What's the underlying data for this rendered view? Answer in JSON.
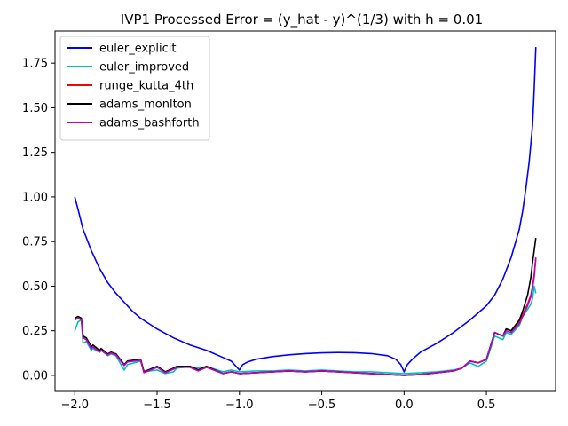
{
  "chart_data": {
    "type": "line",
    "title": "IVP1 Processed Error = (y_hat - y)^(1/3) with h = 0.01",
    "xlabel": "",
    "ylabel": "",
    "xlim": [
      -2.12,
      0.92
    ],
    "ylim": [
      -0.09,
      1.93
    ],
    "x_ticks": [
      -2.0,
      -1.5,
      -1.0,
      -0.5,
      0.0,
      0.5
    ],
    "x_tick_labels": [
      "−2.0",
      "−1.5",
      "−1.0",
      "−0.5",
      "0.0",
      "0.5"
    ],
    "y_ticks": [
      0.0,
      0.25,
      0.5,
      0.75,
      1.0,
      1.25,
      1.5,
      1.75
    ],
    "y_tick_labels": [
      "0.00",
      "0.25",
      "0.50",
      "0.75",
      "1.00",
      "1.25",
      "1.50",
      "1.75"
    ],
    "grid": false,
    "legend_position": "top-left",
    "series": [
      {
        "name": "euler_explicit",
        "color": "#0000ff",
        "x": [
          -2.0,
          -1.98,
          -1.95,
          -1.9,
          -1.85,
          -1.8,
          -1.75,
          -1.7,
          -1.65,
          -1.6,
          -1.55,
          -1.5,
          -1.4,
          -1.3,
          -1.2,
          -1.1,
          -1.05,
          -1.0,
          -0.98,
          -0.95,
          -0.9,
          -0.8,
          -0.7,
          -0.6,
          -0.5,
          -0.4,
          -0.3,
          -0.2,
          -0.1,
          -0.05,
          -0.02,
          0.0,
          0.02,
          0.05,
          0.1,
          0.2,
          0.3,
          0.4,
          0.5,
          0.55,
          0.6,
          0.65,
          0.7,
          0.72,
          0.74,
          0.76,
          0.78,
          0.79,
          0.8
        ],
        "y": [
          1.0,
          0.93,
          0.82,
          0.7,
          0.6,
          0.52,
          0.46,
          0.41,
          0.36,
          0.32,
          0.29,
          0.26,
          0.21,
          0.17,
          0.14,
          0.1,
          0.08,
          0.03,
          0.06,
          0.075,
          0.09,
          0.105,
          0.115,
          0.122,
          0.126,
          0.128,
          0.127,
          0.122,
          0.11,
          0.09,
          0.06,
          0.02,
          0.06,
          0.09,
          0.13,
          0.18,
          0.24,
          0.31,
          0.39,
          0.45,
          0.54,
          0.66,
          0.82,
          0.92,
          1.05,
          1.2,
          1.4,
          1.6,
          1.84
        ]
      },
      {
        "name": "euler_improved",
        "color": "#00bfbf",
        "x": [
          -2.0,
          -1.98,
          -1.96,
          -1.95,
          -1.93,
          -1.9,
          -1.89,
          -1.85,
          -1.84,
          -1.8,
          -1.78,
          -1.75,
          -1.7,
          -1.68,
          -1.6,
          -1.58,
          -1.5,
          -1.45,
          -1.4,
          -1.38,
          -1.3,
          -1.25,
          -1.2,
          -1.1,
          -1.05,
          -1.0,
          -0.9,
          -0.8,
          -0.7,
          -0.6,
          -0.5,
          -0.4,
          -0.3,
          -0.2,
          -0.1,
          0.0,
          0.1,
          0.2,
          0.3,
          0.35,
          0.4,
          0.45,
          0.5,
          0.55,
          0.6,
          0.62,
          0.65,
          0.7,
          0.72,
          0.75,
          0.77,
          0.78,
          0.79,
          0.8
        ],
        "y": [
          0.25,
          0.3,
          0.31,
          0.18,
          0.19,
          0.14,
          0.15,
          0.13,
          0.14,
          0.11,
          0.12,
          0.11,
          0.03,
          0.06,
          0.08,
          0.02,
          0.03,
          0.01,
          0.02,
          0.04,
          0.05,
          0.04,
          0.05,
          0.02,
          0.03,
          0.02,
          0.025,
          0.025,
          0.03,
          0.025,
          0.03,
          0.025,
          0.02,
          0.02,
          0.015,
          0.01,
          0.015,
          0.02,
          0.03,
          0.04,
          0.07,
          0.05,
          0.08,
          0.22,
          0.2,
          0.24,
          0.23,
          0.28,
          0.33,
          0.37,
          0.4,
          0.43,
          0.5,
          0.46
        ]
      },
      {
        "name": "runge_kutta_4th",
        "color": "#ff0000",
        "x": [
          -2.0,
          -1.98,
          -1.96,
          -1.95,
          -1.93,
          -1.9,
          -1.89,
          -1.85,
          -1.84,
          -1.8,
          -1.78,
          -1.75,
          -1.7,
          -1.68,
          -1.6,
          -1.58,
          -1.5,
          -1.45,
          -1.4,
          -1.38,
          -1.3,
          -1.25,
          -1.2,
          -1.1,
          -1.05,
          -1.0,
          -0.9,
          -0.8,
          -0.7,
          -0.6,
          -0.5,
          -0.4,
          -0.3,
          -0.2,
          -0.1,
          0.0,
          0.1,
          0.2,
          0.3,
          0.35,
          0.4,
          0.45,
          0.5,
          0.55,
          0.6,
          0.62,
          0.65,
          0.7,
          0.72,
          0.75,
          0.77,
          0.78,
          0.79,
          0.8
        ],
        "y": [
          0.32,
          0.33,
          0.32,
          0.22,
          0.21,
          0.16,
          0.17,
          0.14,
          0.15,
          0.12,
          0.13,
          0.12,
          0.06,
          0.08,
          0.09,
          0.02,
          0.05,
          0.02,
          0.04,
          0.05,
          0.05,
          0.03,
          0.05,
          0.01,
          0.02,
          0.01,
          0.015,
          0.02,
          0.025,
          0.02,
          0.025,
          0.02,
          0.015,
          0.01,
          0.005,
          0.0,
          0.005,
          0.015,
          0.025,
          0.04,
          0.08,
          0.07,
          0.09,
          0.24,
          0.22,
          0.26,
          0.25,
          0.3,
          0.34,
          0.4,
          0.45,
          0.5,
          0.56,
          0.66
        ]
      },
      {
        "name": "adams_monlton",
        "color": "#000000",
        "x": [
          -2.0,
          -1.98,
          -1.96,
          -1.95,
          -1.93,
          -1.9,
          -1.89,
          -1.85,
          -1.84,
          -1.8,
          -1.78,
          -1.75,
          -1.7,
          -1.68,
          -1.6,
          -1.58,
          -1.5,
          -1.45,
          -1.4,
          -1.38,
          -1.3,
          -1.25,
          -1.2,
          -1.1,
          -1.05,
          -1.0,
          -0.9,
          -0.8,
          -0.7,
          -0.6,
          -0.5,
          -0.4,
          -0.3,
          -0.2,
          -0.1,
          0.0,
          0.1,
          0.2,
          0.3,
          0.35,
          0.4,
          0.45,
          0.5,
          0.55,
          0.6,
          0.62,
          0.65,
          0.7,
          0.72,
          0.75,
          0.77,
          0.78,
          0.79,
          0.8
        ],
        "y": [
          0.32,
          0.33,
          0.32,
          0.22,
          0.21,
          0.16,
          0.17,
          0.14,
          0.15,
          0.12,
          0.13,
          0.12,
          0.06,
          0.08,
          0.09,
          0.02,
          0.05,
          0.02,
          0.04,
          0.05,
          0.05,
          0.03,
          0.05,
          0.01,
          0.02,
          0.01,
          0.015,
          0.02,
          0.025,
          0.02,
          0.025,
          0.02,
          0.015,
          0.01,
          0.005,
          0.0,
          0.005,
          0.015,
          0.025,
          0.04,
          0.08,
          0.07,
          0.09,
          0.24,
          0.22,
          0.26,
          0.25,
          0.31,
          0.36,
          0.45,
          0.55,
          0.63,
          0.7,
          0.77
        ]
      },
      {
        "name": "adams_bashforth",
        "color": "#bf00bf",
        "x": [
          -2.0,
          -1.98,
          -1.96,
          -1.95,
          -1.93,
          -1.9,
          -1.89,
          -1.85,
          -1.84,
          -1.8,
          -1.78,
          -1.75,
          -1.7,
          -1.68,
          -1.6,
          -1.58,
          -1.5,
          -1.45,
          -1.4,
          -1.38,
          -1.3,
          -1.25,
          -1.2,
          -1.1,
          -1.05,
          -1.0,
          -0.9,
          -0.8,
          -0.7,
          -0.6,
          -0.5,
          -0.4,
          -0.3,
          -0.2,
          -0.1,
          0.0,
          0.1,
          0.2,
          0.3,
          0.35,
          0.4,
          0.45,
          0.5,
          0.55,
          0.6,
          0.62,
          0.65,
          0.7,
          0.72,
          0.75,
          0.77,
          0.78,
          0.79,
          0.8
        ],
        "y": [
          0.31,
          0.32,
          0.31,
          0.21,
          0.2,
          0.15,
          0.16,
          0.13,
          0.14,
          0.115,
          0.125,
          0.115,
          0.055,
          0.075,
          0.085,
          0.015,
          0.045,
          0.015,
          0.035,
          0.045,
          0.045,
          0.025,
          0.045,
          0.01,
          0.02,
          0.01,
          0.015,
          0.02,
          0.025,
          0.02,
          0.025,
          0.02,
          0.015,
          0.01,
          0.005,
          0.0,
          0.005,
          0.015,
          0.025,
          0.04,
          0.08,
          0.07,
          0.09,
          0.24,
          0.22,
          0.25,
          0.24,
          0.29,
          0.33,
          0.39,
          0.44,
          0.49,
          0.55,
          0.66
        ]
      }
    ]
  }
}
